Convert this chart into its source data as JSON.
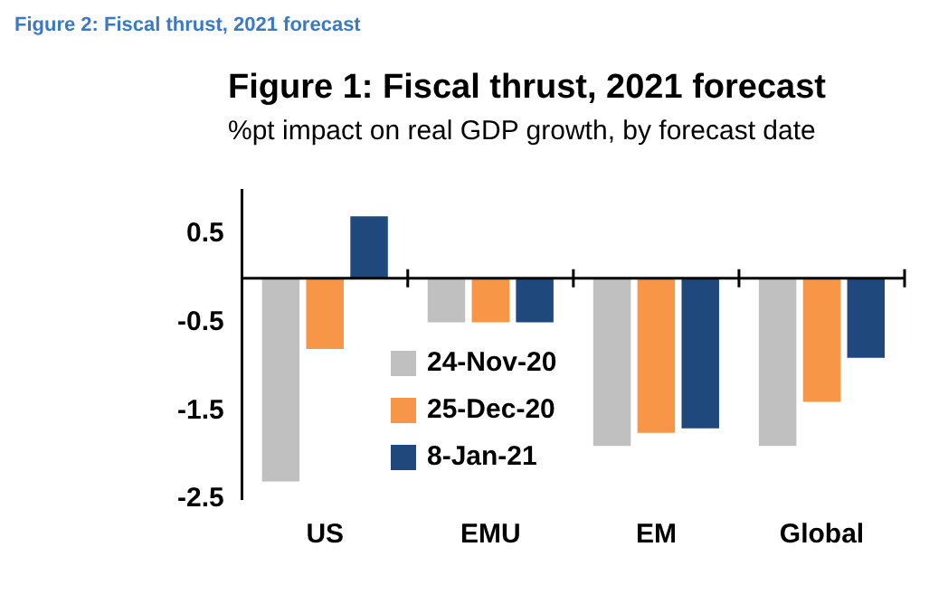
{
  "chart_data": {
    "type": "bar",
    "title": "Figure 1: Fiscal thrust, 2021 forecast",
    "subtitle": "%pt impact on real GDP growth, by forecast date",
    "annotations": [
      "Figure 2: Fiscal thrust, 2021 forecast"
    ],
    "categories": [
      "US",
      "EMU",
      "EM",
      "Global"
    ],
    "series": [
      {
        "name": "24-Nov-20",
        "color": "#c0c0c0",
        "values": [
          -2.3,
          -0.5,
          -1.9,
          -1.9
        ]
      },
      {
        "name": "25-Dec-20",
        "color": "#f79646",
        "values": [
          -0.8,
          -0.5,
          -1.75,
          -1.4
        ]
      },
      {
        "name": "8-Jan-21",
        "color": "#1f497d",
        "values": [
          0.7,
          -0.5,
          -1.7,
          -0.9
        ]
      }
    ],
    "ylim": [
      -2.5,
      1
    ],
    "yticks": [
      0.5,
      -0.5,
      -1.5,
      -2.5
    ],
    "grid": false,
    "legend": "center"
  }
}
